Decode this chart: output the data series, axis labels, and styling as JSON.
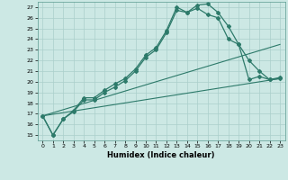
{
  "xlabel": "Humidex (Indice chaleur)",
  "xlim": [
    -0.5,
    23.5
  ],
  "ylim": [
    14.5,
    27.5
  ],
  "yticks": [
    15,
    16,
    17,
    18,
    19,
    20,
    21,
    22,
    23,
    24,
    25,
    26,
    27
  ],
  "xticks": [
    0,
    1,
    2,
    3,
    4,
    5,
    6,
    7,
    8,
    9,
    10,
    11,
    12,
    13,
    14,
    15,
    16,
    17,
    18,
    19,
    20,
    21,
    22,
    23
  ],
  "bg_color": "#cce8e4",
  "grid_color": "#aacfcb",
  "line_color": "#2d7a6a",
  "lines": [
    {
      "x": [
        0,
        1,
        2,
        3,
        4,
        5,
        6,
        7,
        8,
        9,
        10,
        11,
        12,
        13,
        14,
        15,
        16,
        17,
        18,
        19,
        20,
        21,
        22,
        23
      ],
      "y": [
        16.8,
        15.0,
        16.5,
        17.3,
        18.5,
        18.5,
        19.2,
        19.8,
        20.3,
        21.2,
        22.5,
        23.2,
        24.8,
        27.0,
        26.5,
        27.2,
        27.3,
        26.5,
        25.2,
        23.5,
        20.2,
        20.5,
        20.2,
        20.4
      ],
      "marker": "D",
      "markersize": 2.0,
      "linewidth": 0.9
    },
    {
      "x": [
        0,
        1,
        2,
        3,
        4,
        5,
        6,
        7,
        8,
        9,
        10,
        11,
        12,
        13,
        14,
        15,
        16,
        17,
        18,
        19,
        20,
        21,
        22,
        23
      ],
      "y": [
        16.8,
        15.0,
        16.5,
        17.2,
        18.3,
        18.3,
        19.0,
        19.5,
        20.1,
        21.0,
        22.3,
        23.0,
        24.6,
        26.7,
        26.5,
        26.9,
        26.3,
        26.0,
        24.0,
        23.5,
        22.0,
        21.0,
        20.2,
        20.3
      ],
      "marker": "D",
      "markersize": 2.0,
      "linewidth": 0.9
    },
    {
      "x": [
        0,
        23
      ],
      "y": [
        16.8,
        23.5
      ],
      "marker": null,
      "linewidth": 0.8
    },
    {
      "x": [
        0,
        23
      ],
      "y": [
        16.8,
        20.3
      ],
      "marker": null,
      "linewidth": 0.8
    }
  ]
}
